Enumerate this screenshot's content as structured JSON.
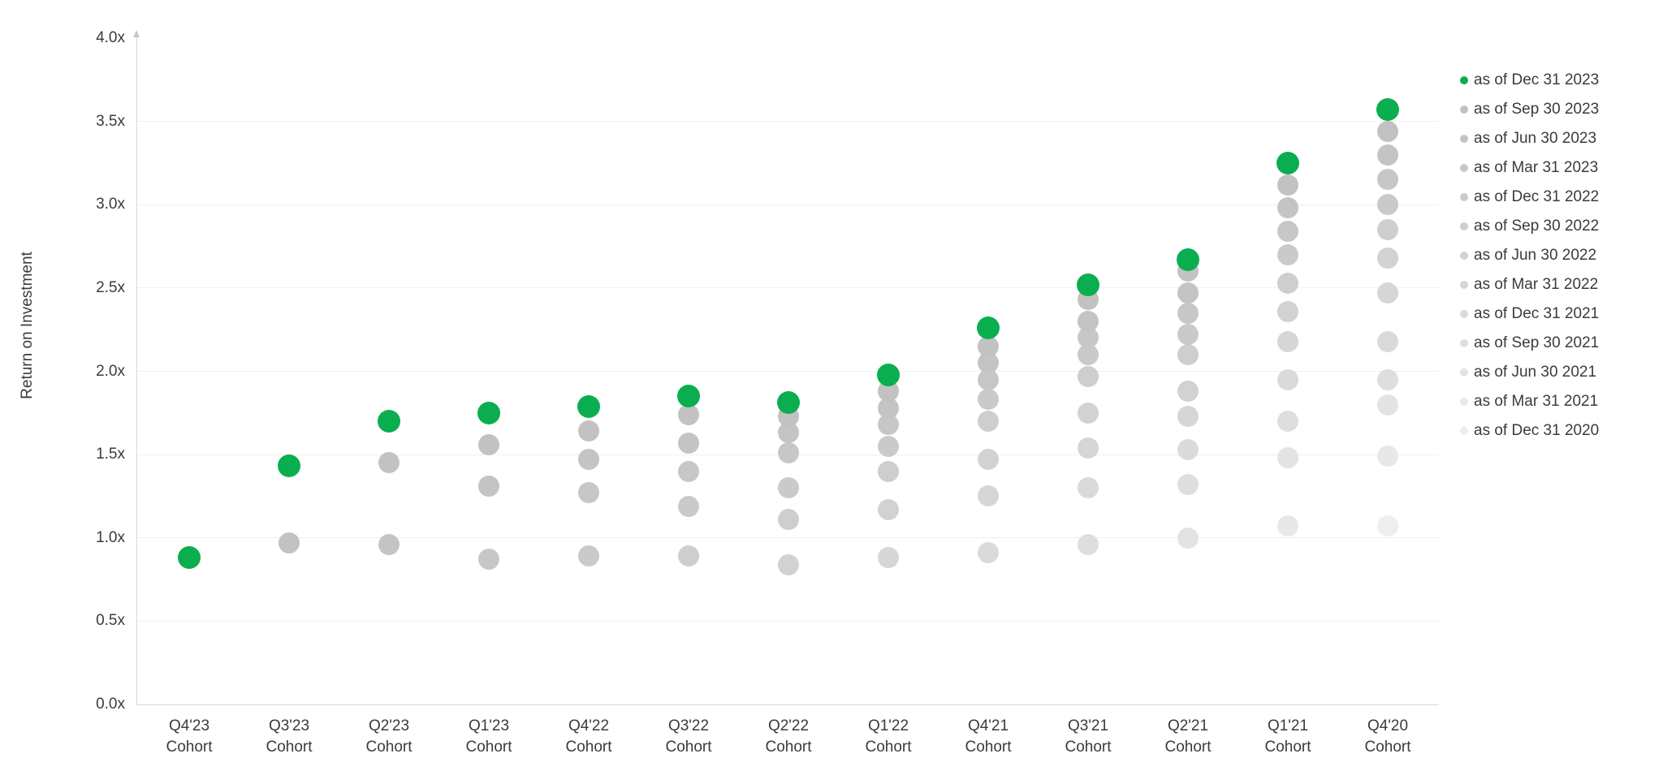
{
  "chart_data": {
    "type": "scatter",
    "title": "",
    "xlabel": "",
    "ylabel": "Return on Investment",
    "ylim": [
      0,
      4
    ],
    "y_tick_step": 0.5,
    "y_ticks": [
      "0.0x",
      "0.5x",
      "1.0x",
      "1.5x",
      "2.0x",
      "2.5x",
      "3.0x",
      "3.5x",
      "4.0x"
    ],
    "grid": "horizontal",
    "legend_position": "right",
    "accent_color": "#0bae4f",
    "colors": {
      "grid": "#f0f0f0",
      "axis": "#d8d8d8",
      "text": "#3b3b3b"
    },
    "categories": [
      "Q4'23 Cohort",
      "Q3'23 Cohort",
      "Q2'23 Cohort",
      "Q1'23 Cohort",
      "Q4'22 Cohort",
      "Q3'22 Cohort",
      "Q2'22 Cohort",
      "Q1'22 Cohort",
      "Q4'21 Cohort",
      "Q3'21 Cohort",
      "Q2'21 Cohort",
      "Q1'21 Cohort",
      "Q4'20 Cohort"
    ],
    "series": [
      {
        "name": "as of Dec 31 2023",
        "color": "#0bae4f",
        "values": [
          0.88,
          1.43,
          1.7,
          1.75,
          1.79,
          1.85,
          1.81,
          1.98,
          2.26,
          2.52,
          2.67,
          3.25,
          3.57
        ]
      },
      {
        "name": "as of Sep 30 2023",
        "color": "#c2c2c2",
        "values": [
          null,
          0.97,
          1.45,
          1.56,
          1.64,
          1.74,
          1.73,
          1.88,
          2.15,
          2.43,
          2.6,
          3.12,
          3.44
        ]
      },
      {
        "name": "as of Jun 30 2023",
        "color": "#c4c4c4",
        "values": [
          null,
          null,
          0.96,
          1.31,
          1.47,
          1.57,
          1.63,
          1.78,
          2.05,
          2.3,
          2.47,
          2.98,
          3.3
        ]
      },
      {
        "name": "as of Mar 31 2023",
        "color": "#c7c7c7",
        "values": [
          null,
          null,
          null,
          0.87,
          1.27,
          1.4,
          1.51,
          1.68,
          1.95,
          2.2,
          2.35,
          2.84,
          3.15
        ]
      },
      {
        "name": "as of Dec 31 2022",
        "color": "#cacaca",
        "values": [
          null,
          null,
          null,
          null,
          0.89,
          1.19,
          1.3,
          1.55,
          1.83,
          2.1,
          2.22,
          2.7,
          3.0
        ]
      },
      {
        "name": "as of Sep 30 2022",
        "color": "#cecece",
        "values": [
          null,
          null,
          null,
          null,
          null,
          0.89,
          1.11,
          1.4,
          1.7,
          1.97,
          2.1,
          2.53,
          2.85
        ]
      },
      {
        "name": "as of Jun 30 2022",
        "color": "#d2d2d2",
        "values": [
          null,
          null,
          null,
          null,
          null,
          null,
          0.84,
          1.17,
          1.47,
          1.75,
          1.88,
          2.36,
          2.68
        ]
      },
      {
        "name": "as of Mar 31 2022",
        "color": "#d6d6d6",
        "values": [
          null,
          null,
          null,
          null,
          null,
          null,
          null,
          0.88,
          1.25,
          1.54,
          1.73,
          2.18,
          2.47
        ]
      },
      {
        "name": "as of Dec 31 2021",
        "color": "#dadada",
        "values": [
          null,
          null,
          null,
          null,
          null,
          null,
          null,
          null,
          0.91,
          1.3,
          1.53,
          1.95,
          2.18
        ]
      },
      {
        "name": "as of Sep 30 2021",
        "color": "#dedede",
        "values": [
          null,
          null,
          null,
          null,
          null,
          null,
          null,
          null,
          null,
          0.96,
          1.32,
          1.7,
          1.95
        ]
      },
      {
        "name": "as of Jun 30 2021",
        "color": "#e3e3e3",
        "values": [
          null,
          null,
          null,
          null,
          null,
          null,
          null,
          null,
          null,
          null,
          1.0,
          1.48,
          1.8
        ]
      },
      {
        "name": "as of Mar 31 2021",
        "color": "#e8e8e8",
        "values": [
          null,
          null,
          null,
          null,
          null,
          null,
          null,
          null,
          null,
          null,
          null,
          1.07,
          1.49
        ]
      },
      {
        "name": "as of Dec 31 2020",
        "color": "#eeeeee",
        "values": [
          null,
          null,
          null,
          null,
          null,
          null,
          null,
          null,
          null,
          null,
          null,
          null,
          1.07
        ]
      }
    ]
  }
}
